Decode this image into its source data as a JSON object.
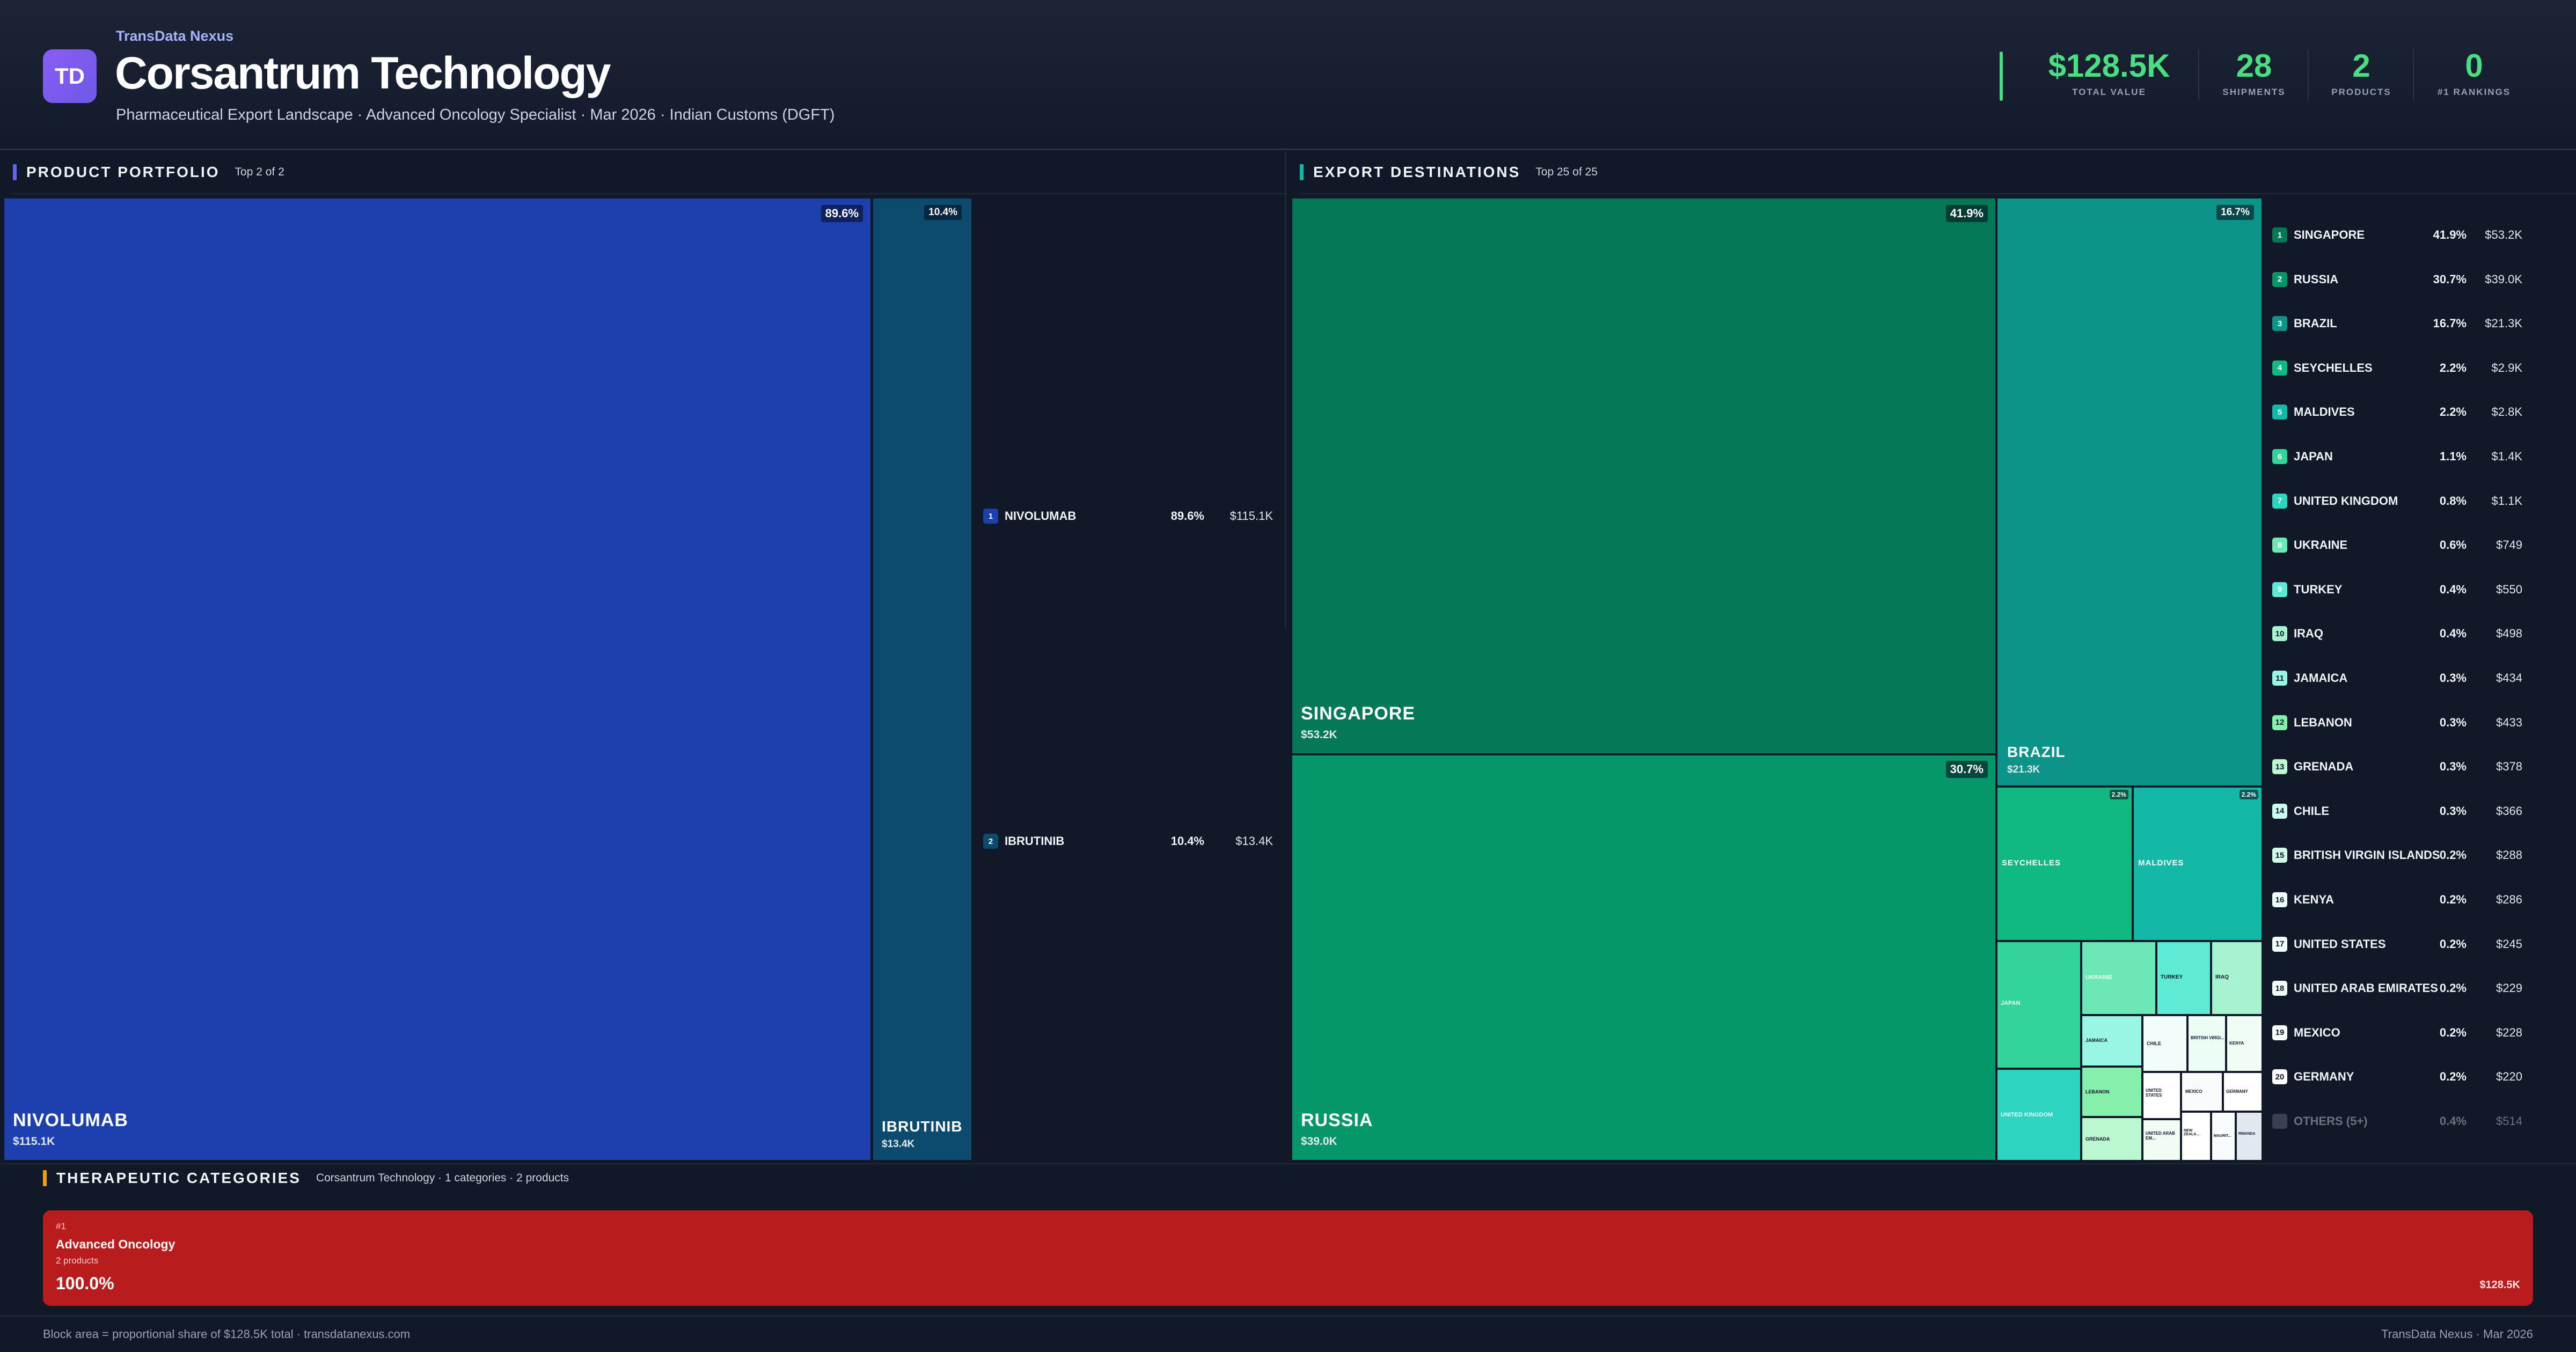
{
  "header": {
    "brand": "TransData Nexus",
    "logo_text": "TD",
    "title": "Corsantrum Technology",
    "subtitle": "Pharmaceutical Export Landscape · Advanced Oncology Specialist · Mar 2026 · Indian Customs (DGFT)",
    "stats": [
      {
        "value": "$128.5K",
        "label": "TOTAL VALUE"
      },
      {
        "value": "28",
        "label": "SHIPMENTS"
      },
      {
        "value": "2",
        "label": "PRODUCTS"
      },
      {
        "value": "0",
        "label": "#1 RANKINGS"
      }
    ]
  },
  "portfolio": {
    "title": "PRODUCT PORTFOLIO",
    "subtitle": "Top 2 of 2",
    "accent": "#6366f1",
    "items": [
      {
        "rank": "1",
        "name": "NIVOLUMAB",
        "pct": "89.6%",
        "value": "$115.1K",
        "color": "#1e40af"
      },
      {
        "rank": "2",
        "name": "IBRUTINIB",
        "pct": "10.4%",
        "value": "$13.4K",
        "color": "#0c4a6e"
      }
    ]
  },
  "destinations": {
    "title": "EXPORT DESTINATIONS",
    "subtitle": "Top 25 of 25",
    "accent": "#14b8a6",
    "items": [
      {
        "rank": "1",
        "name": "SINGAPORE",
        "pct": "41.9%",
        "value": "$53.2K",
        "color": "#047857"
      },
      {
        "rank": "2",
        "name": "RUSSIA",
        "pct": "30.7%",
        "value": "$39.0K",
        "color": "#059669"
      },
      {
        "rank": "3",
        "name": "BRAZIL",
        "pct": "16.7%",
        "value": "$21.3K",
        "color": "#0d9488"
      },
      {
        "rank": "4",
        "name": "SEYCHELLES",
        "pct": "2.2%",
        "value": "$2.9K",
        "color": "#10b981"
      },
      {
        "rank": "5",
        "name": "MALDIVES",
        "pct": "2.2%",
        "value": "$2.8K",
        "color": "#14b8a6"
      },
      {
        "rank": "6",
        "name": "JAPAN",
        "pct": "1.1%",
        "value": "$1.4K",
        "color": "#34d399"
      },
      {
        "rank": "7",
        "name": "UNITED KINGDOM",
        "pct": "0.8%",
        "value": "$1.1K",
        "color": "#2dd4bf"
      },
      {
        "rank": "8",
        "name": "UKRAINE",
        "pct": "0.6%",
        "value": "$749",
        "color": "#6ee7b7"
      },
      {
        "rank": "9",
        "name": "TURKEY",
        "pct": "0.4%",
        "value": "$550",
        "color": "#5eead4"
      },
      {
        "rank": "10",
        "name": "IRAQ",
        "pct": "0.4%",
        "value": "$498",
        "color": "#a7f3d0"
      },
      {
        "rank": "11",
        "name": "JAMAICA",
        "pct": "0.3%",
        "value": "$434",
        "color": "#99f6e4"
      },
      {
        "rank": "12",
        "name": "LEBANON",
        "pct": "0.3%",
        "value": "$433",
        "color": "#86efac"
      },
      {
        "rank": "13",
        "name": "GRENADA",
        "pct": "0.3%",
        "value": "$378",
        "color": "#bbf7d0"
      },
      {
        "rank": "14",
        "name": "CHILE",
        "pct": "0.3%",
        "value": "$366",
        "color": "#ccfbf1"
      },
      {
        "rank": "15",
        "name": "BRITISH VIRGIN ISLANDS",
        "pct": "0.2%",
        "value": "$288",
        "color": "#d1fae5"
      },
      {
        "rank": "16",
        "name": "KENYA",
        "pct": "0.2%",
        "value": "$286",
        "color": "#ecfdf5"
      },
      {
        "rank": "17",
        "name": "UNITED STATES",
        "pct": "0.2%",
        "value": "$245",
        "color": "#f0fdfa"
      },
      {
        "rank": "18",
        "name": "UNITED ARAB EMIRATES",
        "pct": "0.2%",
        "value": "$229",
        "color": "#f0fdf4"
      },
      {
        "rank": "19",
        "name": "MEXICO",
        "pct": "0.2%",
        "value": "$228",
        "color": "#f8fafc"
      },
      {
        "rank": "20",
        "name": "GERMANY",
        "pct": "0.2%",
        "value": "$220",
        "color": "#ffffff"
      }
    ],
    "others": {
      "name": "OTHERS (5+)",
      "pct": "0.4%",
      "value": "$514"
    },
    "mini_labels": {
      "new_zealand": "NEW ZEALA...",
      "bvi": "BRITISH VIRGI...",
      "uae": "UNITED ARAB EM...",
      "united_states": "UNITED STATES",
      "mauritius": "MAURIT...",
      "rwanda": "RWANDA"
    }
  },
  "therapeutic": {
    "title": "THERAPEUTIC CATEGORIES",
    "subtitle": "Corsantrum Technology · 1 categories · 2 products",
    "accent": "#f59e0b",
    "category": {
      "rank": "#1",
      "name": "Advanced Oncology",
      "products": "2 products",
      "pct": "100.0%",
      "value": "$128.5K",
      "color": "#b91c1c"
    }
  },
  "footer": {
    "left": "Block area = proportional share of $128.5K total · transdatanexus.com",
    "right": "TransData Nexus · Mar 2026"
  }
}
